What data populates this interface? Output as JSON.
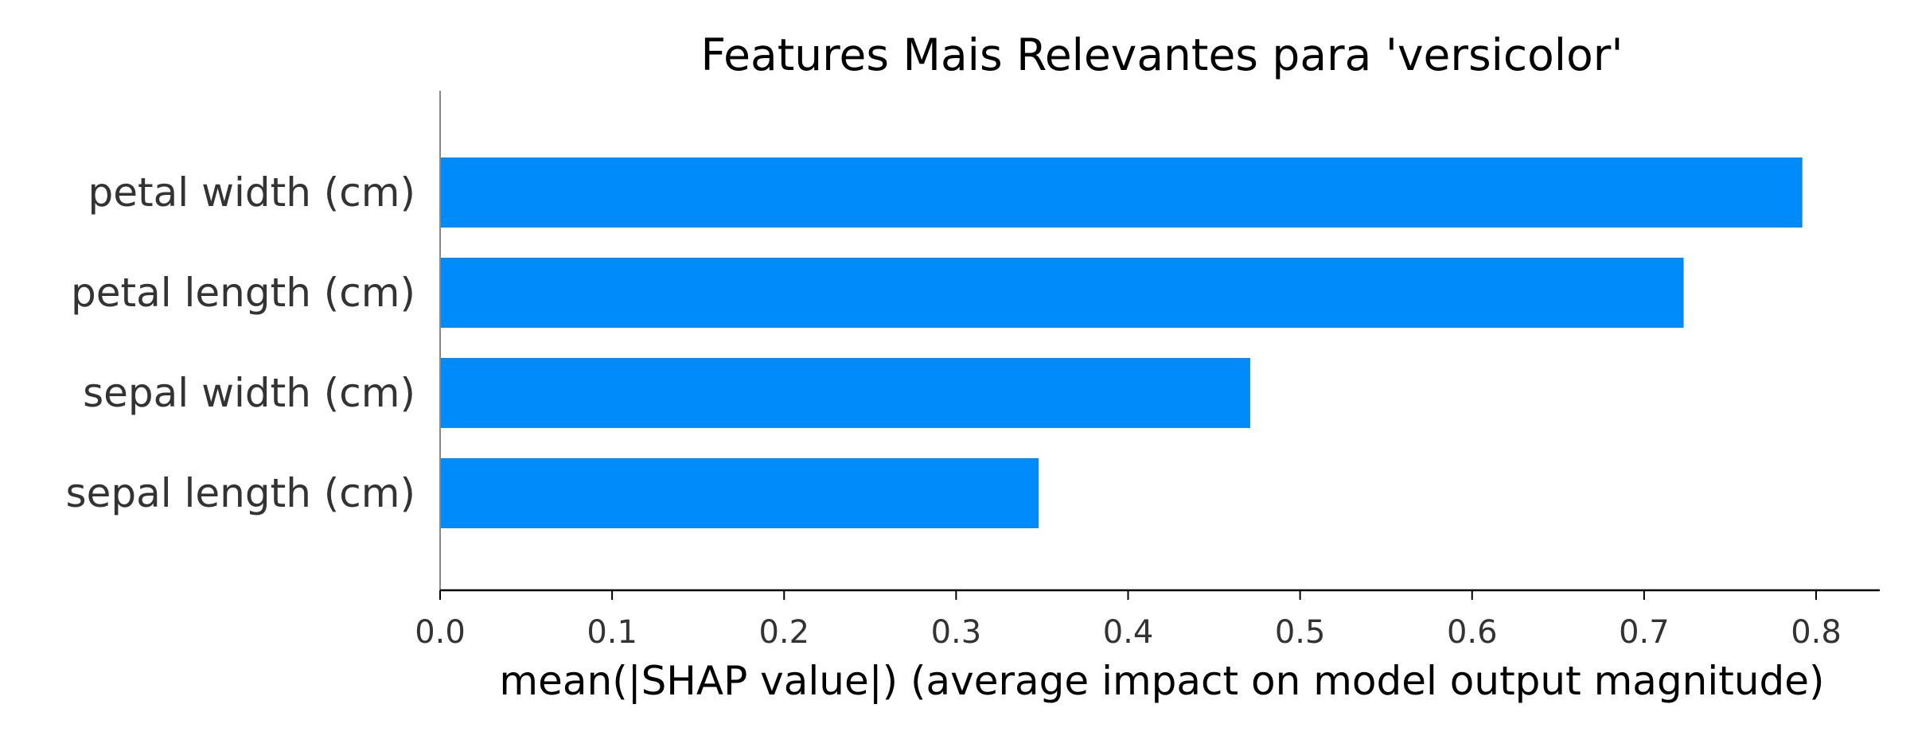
{
  "chart_data": {
    "type": "bar",
    "orientation": "horizontal",
    "title": "Features Mais Relevantes para 'versicolor'",
    "xlabel": "mean(|SHAP value|) (average impact on model output magnitude)",
    "ylabel": "",
    "categories": [
      "petal width (cm)",
      "petal length (cm)",
      "sepal width (cm)",
      "sepal length (cm)"
    ],
    "values": [
      0.792,
      0.723,
      0.471,
      0.348
    ],
    "xlim": [
      0,
      0.83
    ],
    "xticks": [
      0.0,
      0.1,
      0.2,
      0.3,
      0.4,
      0.5,
      0.6,
      0.7,
      0.8
    ],
    "xtick_labels": [
      "0.0",
      "0.1",
      "0.2",
      "0.3",
      "0.4",
      "0.5",
      "0.6",
      "0.7",
      "0.8"
    ],
    "bar_color": "#008bfb",
    "grid": false,
    "legend": "none"
  }
}
